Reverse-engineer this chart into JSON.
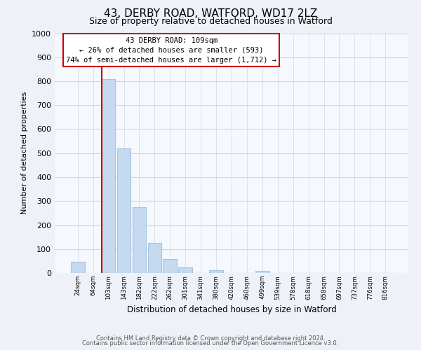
{
  "title": "43, DERBY ROAD, WATFORD, WD17 2LZ",
  "subtitle": "Size of property relative to detached houses in Watford",
  "xlabel": "Distribution of detached houses by size in Watford",
  "ylabel": "Number of detached properties",
  "bar_labels": [
    "24sqm",
    "64sqm",
    "103sqm",
    "143sqm",
    "182sqm",
    "222sqm",
    "262sqm",
    "301sqm",
    "341sqm",
    "380sqm",
    "420sqm",
    "460sqm",
    "499sqm",
    "539sqm",
    "578sqm",
    "618sqm",
    "658sqm",
    "697sqm",
    "737sqm",
    "776sqm",
    "816sqm"
  ],
  "bar_heights": [
    46,
    0,
    810,
    520,
    275,
    125,
    57,
    22,
    0,
    12,
    0,
    0,
    8,
    0,
    0,
    0,
    0,
    0,
    0,
    0,
    0
  ],
  "bar_color": "#c5d9f0",
  "bar_edge_color": "#a8c4e0",
  "marker_label": "43 DERBY ROAD: 109sqm",
  "annotation_line1": "← 26% of detached houses are smaller (593)",
  "annotation_line2": "74% of semi-detached houses are larger (1,712) →",
  "vline_color": "#cc0000",
  "vline_x_index": 2,
  "ylim": [
    0,
    1000
  ],
  "yticks": [
    0,
    100,
    200,
    300,
    400,
    500,
    600,
    700,
    800,
    900,
    1000
  ],
  "footnote1": "Contains HM Land Registry data © Crown copyright and database right 2024.",
  "footnote2": "Contains public sector information licensed under the Open Government Licence v3.0.",
  "bg_color": "#eef2f8",
  "plot_bg_color": "#f5f8fd",
  "grid_color": "#d0d8e8",
  "box_color": "#cc0000",
  "box_facecolor": "#ffffff",
  "title_fontsize": 11,
  "subtitle_fontsize": 9
}
